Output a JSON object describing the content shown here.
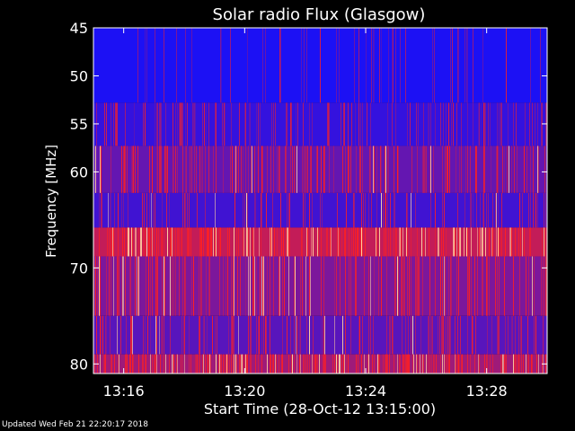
{
  "chart_data": {
    "type": "heatmap",
    "title": "Solar radio Flux (Glasgow)",
    "xlabel": "Start Time (28-Oct-12 13:15:00)",
    "ylabel": "Frequency [MHz]",
    "xlim": [
      "13:15:00",
      "13:30:00"
    ],
    "ylim": [
      45,
      81
    ],
    "y_reversed": true,
    "x_ticks": [
      "13:16",
      "13:20",
      "13:24",
      "13:28"
    ],
    "y_ticks": [
      45,
      50,
      55,
      60,
      70,
      80
    ],
    "y_tick_labels_shown": [
      "45",
      "50",
      "55",
      "60",
      "70",
      "80"
    ],
    "colormap": {
      "low": "#1010ff",
      "high": "#ff2020",
      "peak": "#ffd0a0"
    },
    "bands": [
      {
        "from_mhz": 45.0,
        "to_mhz": 52.8,
        "level": 0.05,
        "spike_density": 0.1
      },
      {
        "from_mhz": 52.8,
        "to_mhz": 57.3,
        "level": 0.15,
        "spike_density": 0.22
      },
      {
        "from_mhz": 57.3,
        "to_mhz": 62.2,
        "level": 0.35,
        "spike_density": 0.3
      },
      {
        "from_mhz": 62.2,
        "to_mhz": 65.8,
        "level": 0.2,
        "spike_density": 0.2
      },
      {
        "from_mhz": 65.8,
        "to_mhz": 68.8,
        "level": 0.75,
        "spike_density": 0.35
      },
      {
        "from_mhz": 68.8,
        "to_mhz": 75.0,
        "level": 0.45,
        "spike_density": 0.28
      },
      {
        "from_mhz": 75.0,
        "to_mhz": 79.0,
        "level": 0.3,
        "spike_density": 0.25
      },
      {
        "from_mhz": 79.0,
        "to_mhz": 81.0,
        "level": 0.6,
        "spike_density": 0.4
      }
    ]
  },
  "footer": {
    "updated": "Updated Wed Feb 21 22:20:17 2018"
  }
}
